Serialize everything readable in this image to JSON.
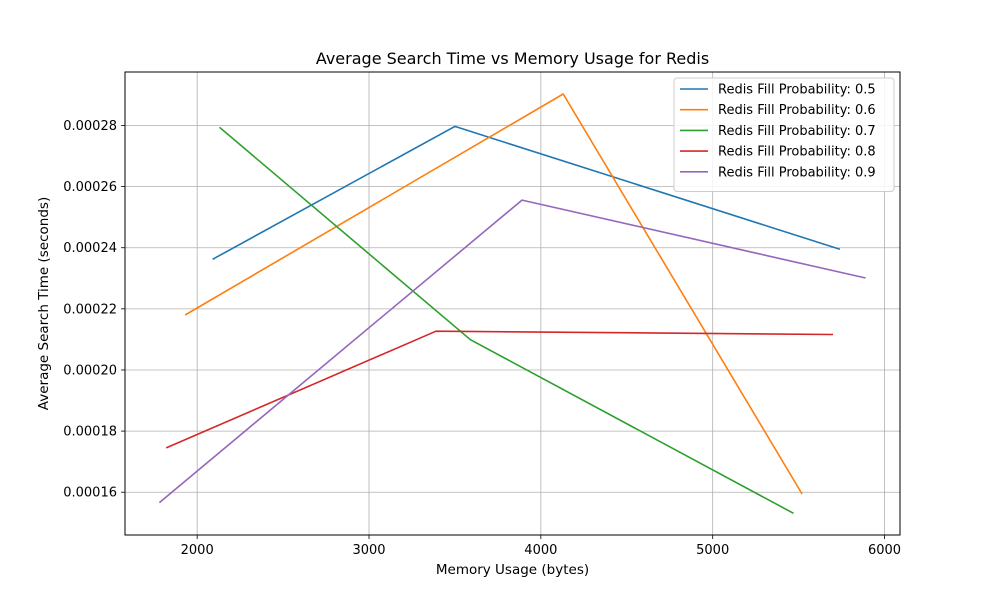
{
  "chart_data": {
    "type": "line",
    "title": "Average Search Time vs Memory Usage for Redis",
    "xlabel": "Memory Usage (bytes)",
    "ylabel": "Average Search Time (seconds)",
    "xlim": [
      1580,
      6090
    ],
    "ylim": [
      0.000146,
      0.0002975
    ],
    "xticks": [
      2000,
      3000,
      4000,
      5000,
      6000
    ],
    "xtick_labels": [
      "2000",
      "3000",
      "4000",
      "5000",
      "6000"
    ],
    "yticks": [
      0.00016,
      0.00018,
      0.0002,
      0.00022,
      0.00024,
      0.00026,
      0.00028
    ],
    "ytick_labels": [
      "0.00016",
      "0.00018",
      "0.00020",
      "0.00022",
      "0.00024",
      "0.00026",
      "0.00028"
    ],
    "grid": true,
    "legend_position": "top-right",
    "series": [
      {
        "name": "Redis Fill Probability: 0.5",
        "color": "#1f77b4",
        "x": [
          2090,
          3500,
          5740
        ],
        "y": [
          0.0002362,
          0.0002797,
          0.0002395
        ]
      },
      {
        "name": "Redis Fill Probability: 0.6",
        "color": "#ff7f0e",
        "x": [
          1930,
          4130,
          5520
        ],
        "y": [
          0.000218,
          0.0002903,
          0.0001594
        ]
      },
      {
        "name": "Redis Fill Probability: 0.7",
        "color": "#2ca02c",
        "x": [
          2130,
          3590,
          5470
        ],
        "y": [
          0.0002794,
          0.0002099,
          0.0001531
        ]
      },
      {
        "name": "Redis Fill Probability: 0.8",
        "color": "#d62728",
        "x": [
          1820,
          3390,
          5700
        ],
        "y": [
          0.0001745,
          0.0002127,
          0.0002116
        ]
      },
      {
        "name": "Redis Fill Probability: 0.9",
        "color": "#9467bd",
        "x": [
          1780,
          3890,
          5890
        ],
        "y": [
          0.0001566,
          0.0002556,
          0.0002301
        ]
      }
    ]
  }
}
